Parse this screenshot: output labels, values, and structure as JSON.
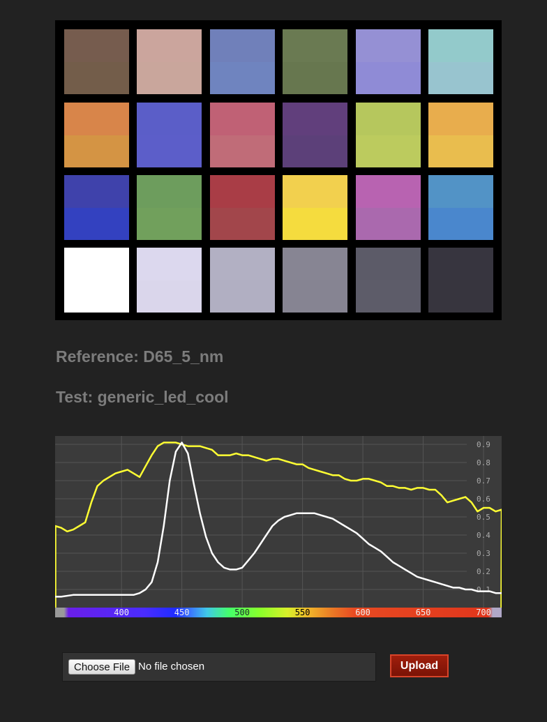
{
  "color_checker": {
    "rows": [
      [
        [
          "#765c4e",
          "#735d4a"
        ],
        [
          "#cba59d",
          "#c9a69c"
        ],
        [
          "#7080ba",
          "#6f84bf"
        ],
        [
          "#6a7a52",
          "#67774f"
        ],
        [
          "#9590d4",
          "#8f8bd6"
        ],
        [
          "#93cacb",
          "#98c4cf"
        ]
      ],
      [
        [
          "#d8854a",
          "#d49444"
        ],
        [
          "#5b5ec8",
          "#5c5ec9"
        ],
        [
          "#c06175",
          "#c06c78"
        ],
        [
          "#613f7c",
          "#5c4079"
        ],
        [
          "#b6c75d",
          "#bccb5e"
        ],
        [
          "#e8ad4d",
          "#e9bd4e"
        ]
      ],
      [
        [
          "#3f42ab",
          "#3341c0"
        ],
        [
          "#6d9d5d",
          "#71a05c"
        ],
        [
          "#a93d46",
          "#a2464b"
        ],
        [
          "#f2d04e",
          "#f5dc3e"
        ],
        [
          "#b863b1",
          "#aa69ae"
        ],
        [
          "#5293c6",
          "#4a87cd"
        ]
      ],
      [
        [
          "#ffffff",
          "#ffffff"
        ],
        [
          "#dcd8ee",
          "#dad6eb"
        ],
        [
          "#b2b0c3",
          "#b1afc2"
        ],
        [
          "#878593",
          "#868492"
        ],
        [
          "#5c5b68",
          "#5d5c69"
        ],
        [
          "#37353f",
          "#37353e"
        ]
      ]
    ]
  },
  "reference_label": "Reference: D65_5_nm",
  "test_label": "Test: generic_led_cool",
  "chart_data": {
    "type": "line",
    "x_range": [
      345,
      715
    ],
    "y_range": [
      0.0,
      1.0
    ],
    "y_ticks": [
      0.1,
      0.2,
      0.3,
      0.4,
      0.5,
      0.6,
      0.7,
      0.8,
      0.9
    ],
    "x_tick_labels": [
      {
        "value": 400,
        "label": "400"
      },
      {
        "value": 450,
        "label": "450"
      },
      {
        "value": 500,
        "label": "500"
      },
      {
        "value": 550,
        "label": "550"
      },
      {
        "value": 600,
        "label": "600"
      },
      {
        "value": 650,
        "label": "650"
      },
      {
        "value": 700,
        "label": "700"
      }
    ],
    "grid": true,
    "series": [
      {
        "color": "#ffff33",
        "points": [
          [
            345,
            0.45
          ],
          [
            350,
            0.44
          ],
          [
            355,
            0.42
          ],
          [
            360,
            0.43
          ],
          [
            365,
            0.45
          ],
          [
            370,
            0.47
          ],
          [
            375,
            0.58
          ],
          [
            380,
            0.67
          ],
          [
            385,
            0.7
          ],
          [
            390,
            0.72
          ],
          [
            395,
            0.74
          ],
          [
            400,
            0.75
          ],
          [
            405,
            0.76
          ],
          [
            410,
            0.74
          ],
          [
            415,
            0.72
          ],
          [
            420,
            0.78
          ],
          [
            425,
            0.84
          ],
          [
            430,
            0.89
          ],
          [
            435,
            0.91
          ],
          [
            440,
            0.91
          ],
          [
            445,
            0.91
          ],
          [
            450,
            0.9
          ],
          [
            455,
            0.89
          ],
          [
            460,
            0.89
          ],
          [
            465,
            0.89
          ],
          [
            470,
            0.88
          ],
          [
            475,
            0.87
          ],
          [
            480,
            0.84
          ],
          [
            485,
            0.84
          ],
          [
            490,
            0.84
          ],
          [
            495,
            0.85
          ],
          [
            500,
            0.84
          ],
          [
            505,
            0.84
          ],
          [
            510,
            0.83
          ],
          [
            515,
            0.82
          ],
          [
            520,
            0.81
          ],
          [
            525,
            0.82
          ],
          [
            530,
            0.82
          ],
          [
            535,
            0.81
          ],
          [
            540,
            0.8
          ],
          [
            545,
            0.79
          ],
          [
            550,
            0.79
          ],
          [
            555,
            0.77
          ],
          [
            560,
            0.76
          ],
          [
            565,
            0.75
          ],
          [
            570,
            0.74
          ],
          [
            575,
            0.73
          ],
          [
            580,
            0.73
          ],
          [
            585,
            0.71
          ],
          [
            590,
            0.7
          ],
          [
            595,
            0.7
          ],
          [
            600,
            0.71
          ],
          [
            605,
            0.71
          ],
          [
            610,
            0.7
          ],
          [
            615,
            0.69
          ],
          [
            620,
            0.67
          ],
          [
            625,
            0.67
          ],
          [
            630,
            0.66
          ],
          [
            635,
            0.66
          ],
          [
            640,
            0.65
          ],
          [
            645,
            0.66
          ],
          [
            650,
            0.66
          ],
          [
            655,
            0.65
          ],
          [
            660,
            0.65
          ],
          [
            665,
            0.62
          ],
          [
            670,
            0.58
          ],
          [
            675,
            0.59
          ],
          [
            680,
            0.6
          ],
          [
            685,
            0.61
          ],
          [
            690,
            0.58
          ],
          [
            695,
            0.53
          ],
          [
            700,
            0.55
          ],
          [
            705,
            0.55
          ],
          [
            710,
            0.53
          ],
          [
            715,
            0.54
          ]
        ]
      },
      {
        "color": "#ffffff",
        "points": [
          [
            345,
            0.06
          ],
          [
            350,
            0.06
          ],
          [
            360,
            0.07
          ],
          [
            370,
            0.07
          ],
          [
            380,
            0.07
          ],
          [
            390,
            0.07
          ],
          [
            400,
            0.07
          ],
          [
            405,
            0.07
          ],
          [
            410,
            0.07
          ],
          [
            415,
            0.08
          ],
          [
            420,
            0.1
          ],
          [
            425,
            0.14
          ],
          [
            430,
            0.25
          ],
          [
            435,
            0.45
          ],
          [
            440,
            0.7
          ],
          [
            445,
            0.86
          ],
          [
            450,
            0.91
          ],
          [
            455,
            0.85
          ],
          [
            460,
            0.68
          ],
          [
            465,
            0.52
          ],
          [
            470,
            0.39
          ],
          [
            475,
            0.3
          ],
          [
            480,
            0.25
          ],
          [
            485,
            0.22
          ],
          [
            490,
            0.21
          ],
          [
            495,
            0.21
          ],
          [
            500,
            0.22
          ],
          [
            505,
            0.26
          ],
          [
            510,
            0.3
          ],
          [
            515,
            0.35
          ],
          [
            520,
            0.4
          ],
          [
            525,
            0.45
          ],
          [
            530,
            0.48
          ],
          [
            535,
            0.5
          ],
          [
            540,
            0.51
          ],
          [
            545,
            0.52
          ],
          [
            550,
            0.52
          ],
          [
            555,
            0.52
          ],
          [
            560,
            0.52
          ],
          [
            565,
            0.51
          ],
          [
            570,
            0.5
          ],
          [
            575,
            0.49
          ],
          [
            580,
            0.47
          ],
          [
            585,
            0.45
          ],
          [
            590,
            0.43
          ],
          [
            595,
            0.41
          ],
          [
            600,
            0.38
          ],
          [
            605,
            0.35
          ],
          [
            610,
            0.33
          ],
          [
            615,
            0.31
          ],
          [
            620,
            0.28
          ],
          [
            625,
            0.25
          ],
          [
            630,
            0.23
          ],
          [
            635,
            0.21
          ],
          [
            640,
            0.19
          ],
          [
            645,
            0.17
          ],
          [
            650,
            0.16
          ],
          [
            655,
            0.15
          ],
          [
            660,
            0.14
          ],
          [
            665,
            0.13
          ],
          [
            670,
            0.12
          ],
          [
            675,
            0.11
          ],
          [
            680,
            0.11
          ],
          [
            685,
            0.1
          ],
          [
            690,
            0.1
          ],
          [
            695,
            0.09
          ],
          [
            700,
            0.09
          ],
          [
            705,
            0.09
          ],
          [
            710,
            0.08
          ],
          [
            715,
            0.08
          ]
        ]
      }
    ]
  },
  "file_input": {
    "button_label": "Choose File",
    "status": "No file chosen"
  },
  "upload_button_label": "Upload"
}
